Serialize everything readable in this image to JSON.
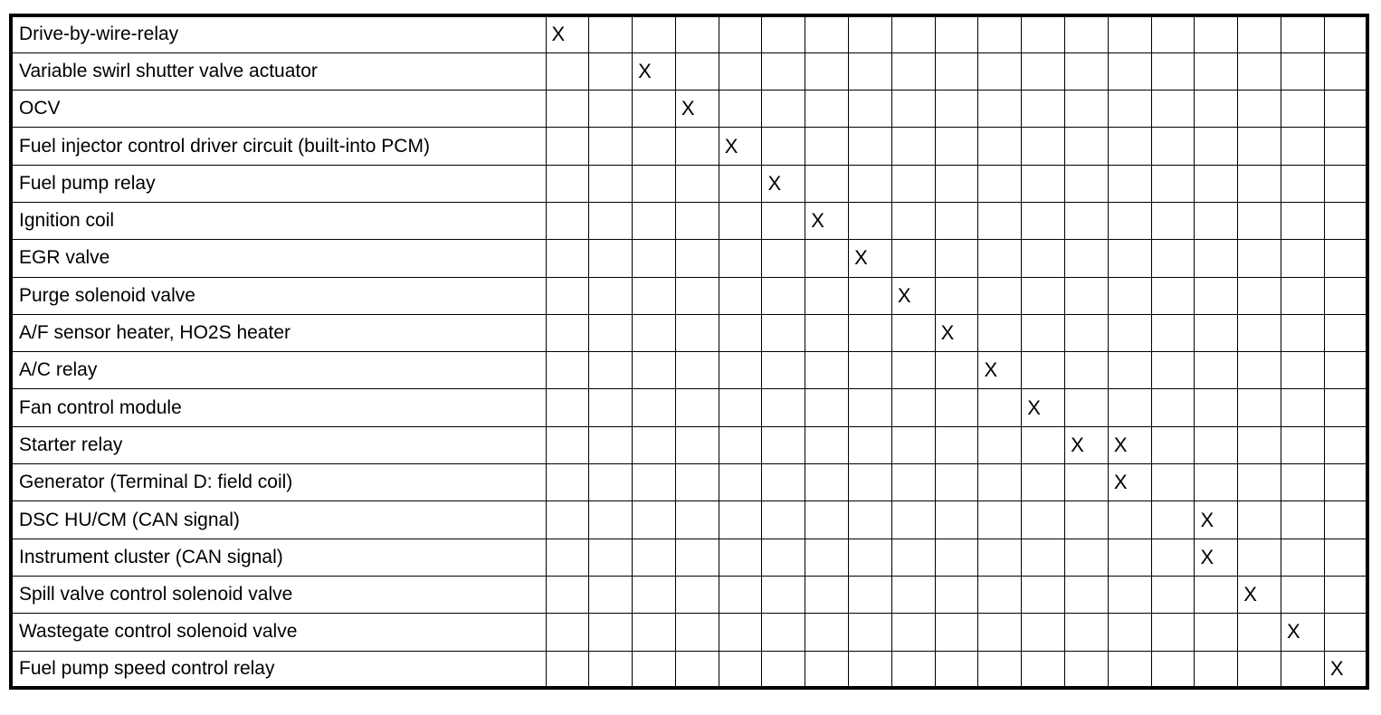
{
  "mark_symbol": "X",
  "column_count": 19,
  "rows": [
    {
      "label": "Drive-by-wire-relay",
      "marks": [
        0
      ]
    },
    {
      "label": "Variable swirl shutter valve actuator",
      "marks": [
        2
      ]
    },
    {
      "label": "OCV",
      "marks": [
        3
      ]
    },
    {
      "label": "Fuel injector control driver circuit (built-into PCM)",
      "marks": [
        4
      ]
    },
    {
      "label": "Fuel pump relay",
      "marks": [
        5
      ]
    },
    {
      "label": "Ignition coil",
      "marks": [
        6
      ]
    },
    {
      "label": "EGR valve",
      "marks": [
        7
      ]
    },
    {
      "label": "Purge solenoid valve",
      "marks": [
        8
      ]
    },
    {
      "label": "A/F sensor heater, HO2S heater",
      "marks": [
        9
      ]
    },
    {
      "label": "A/C relay",
      "marks": [
        10
      ]
    },
    {
      "label": "Fan control module",
      "marks": [
        11
      ]
    },
    {
      "label": "Starter relay",
      "marks": [
        12,
        13
      ]
    },
    {
      "label": "Generator (Terminal D: field coil)",
      "marks": [
        13
      ]
    },
    {
      "label": "DSC HU/CM (CAN signal)",
      "marks": [
        15
      ]
    },
    {
      "label": "Instrument cluster (CAN signal)",
      "marks": [
        15
      ]
    },
    {
      "label": "Spill valve control solenoid valve",
      "marks": [
        16
      ]
    },
    {
      "label": "Wastegate control solenoid valve",
      "marks": [
        17
      ]
    },
    {
      "label": "Fuel pump speed control relay",
      "marks": [
        18
      ]
    }
  ]
}
